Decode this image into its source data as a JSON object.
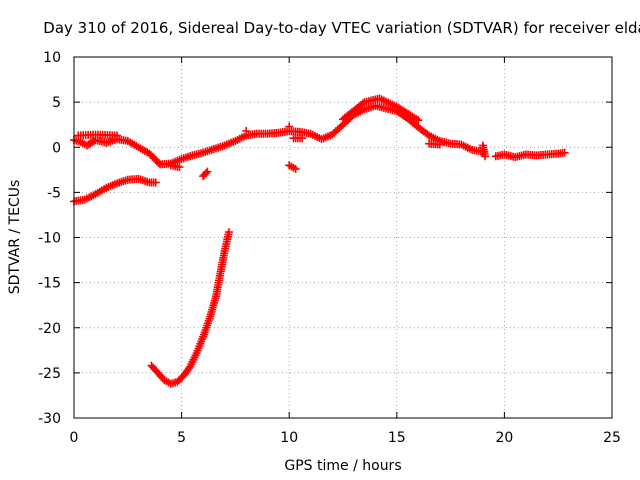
{
  "chart_data": {
    "type": "scatter",
    "title": "Day 310 of 2016, Sidereal Day-to-day VTEC variation (SDTVAR) for receiver elda",
    "xlabel": "GPS time / hours",
    "ylabel": "SDTVAR / TECUs",
    "xlim": [
      0,
      25
    ],
    "ylim": [
      -30,
      10
    ],
    "xticks": [
      0,
      5,
      10,
      15,
      20,
      25
    ],
    "yticks": [
      10,
      5,
      0,
      -5,
      -10,
      -15,
      -20,
      -25,
      -30
    ],
    "grid": true,
    "legend": "none",
    "marker": "plus",
    "series": [
      {
        "name": "main",
        "color": "#ff0000",
        "points": [
          [
            0.0,
            0.8
          ],
          [
            0.3,
            0.6
          ],
          [
            0.6,
            0.2
          ],
          [
            1.0,
            0.8
          ],
          [
            1.5,
            0.5
          ],
          [
            2.0,
            0.9
          ],
          [
            2.5,
            0.7
          ],
          [
            3.0,
            0.0
          ],
          [
            3.5,
            -0.7
          ],
          [
            3.8,
            -1.4
          ],
          [
            4.0,
            -1.9
          ],
          [
            4.5,
            -1.8
          ],
          [
            5.0,
            -1.3
          ],
          [
            5.5,
            -0.9
          ],
          [
            6.0,
            -0.6
          ],
          [
            6.5,
            -0.2
          ],
          [
            7.0,
            0.2
          ],
          [
            7.5,
            0.7
          ],
          [
            8.0,
            1.3
          ],
          [
            8.5,
            1.5
          ],
          [
            9.0,
            1.5
          ],
          [
            9.5,
            1.6
          ],
          [
            10.0,
            1.8
          ],
          [
            10.5,
            1.7
          ],
          [
            11.0,
            1.5
          ],
          [
            11.5,
            0.9
          ],
          [
            12.0,
            1.4
          ],
          [
            12.5,
            2.5
          ],
          [
            13.0,
            3.6
          ],
          [
            13.5,
            4.2
          ],
          [
            14.0,
            4.6
          ],
          [
            14.5,
            4.3
          ],
          [
            15.0,
            4.0
          ],
          [
            15.5,
            3.2
          ],
          [
            16.0,
            2.2
          ],
          [
            16.5,
            1.3
          ],
          [
            17.0,
            0.7
          ],
          [
            17.5,
            0.4
          ],
          [
            18.0,
            0.3
          ],
          [
            18.5,
            -0.3
          ],
          [
            19.0,
            -0.5
          ]
        ]
      },
      {
        "name": "main-upper",
        "color": "#ff0000",
        "points": [
          [
            0.2,
            1.3
          ],
          [
            1.0,
            1.4
          ],
          [
            2.0,
            1.3
          ],
          [
            8.0,
            1.8
          ],
          [
            10.0,
            2.3
          ],
          [
            12.5,
            3.1
          ],
          [
            13.5,
            5.0
          ],
          [
            14.2,
            5.4
          ],
          [
            15.0,
            4.5
          ],
          [
            16.0,
            3.0
          ]
        ]
      },
      {
        "name": "lower-arc",
        "color": "#ff0000",
        "points": [
          [
            0.0,
            -6.0
          ],
          [
            0.5,
            -5.8
          ],
          [
            1.0,
            -5.2
          ],
          [
            1.5,
            -4.5
          ],
          [
            2.0,
            -4.0
          ],
          [
            2.5,
            -3.6
          ],
          [
            3.0,
            -3.5
          ],
          [
            3.5,
            -3.9
          ],
          [
            3.8,
            -3.9
          ]
        ]
      },
      {
        "name": "late-segment",
        "color": "#ff0000",
        "points": [
          [
            19.6,
            -1.0
          ],
          [
            20.0,
            -0.8
          ],
          [
            20.5,
            -1.1
          ],
          [
            21.0,
            -0.8
          ],
          [
            21.5,
            -0.9
          ],
          [
            22.0,
            -0.8
          ],
          [
            22.5,
            -0.7
          ],
          [
            22.8,
            -0.6
          ]
        ]
      },
      {
        "name": "steep-descent",
        "color": "#ff0000",
        "points": [
          [
            3.6,
            -24.2
          ],
          [
            3.9,
            -25.0
          ],
          [
            4.2,
            -25.8
          ],
          [
            4.5,
            -26.2
          ],
          [
            4.8,
            -26.0
          ],
          [
            5.1,
            -25.3
          ],
          [
            5.4,
            -24.3
          ],
          [
            5.7,
            -22.8
          ],
          [
            6.0,
            -21.0
          ],
          [
            6.3,
            -19.0
          ],
          [
            6.6,
            -16.5
          ],
          [
            6.8,
            -14.0
          ],
          [
            7.0,
            -11.5
          ],
          [
            7.2,
            -9.4
          ]
        ]
      },
      {
        "name": "fragments",
        "color": "#ff0000",
        "points": [
          [
            6.0,
            -3.2
          ],
          [
            6.2,
            -2.7
          ],
          [
            10.0,
            -2.0
          ],
          [
            10.3,
            -2.4
          ],
          [
            19.0,
            0.2
          ],
          [
            19.1,
            -1.0
          ],
          [
            16.5,
            0.4
          ],
          [
            17.0,
            0.3
          ],
          [
            10.2,
            1.0
          ],
          [
            10.6,
            1.0
          ],
          [
            4.5,
            -2.0
          ],
          [
            4.9,
            -2.2
          ]
        ]
      }
    ]
  }
}
